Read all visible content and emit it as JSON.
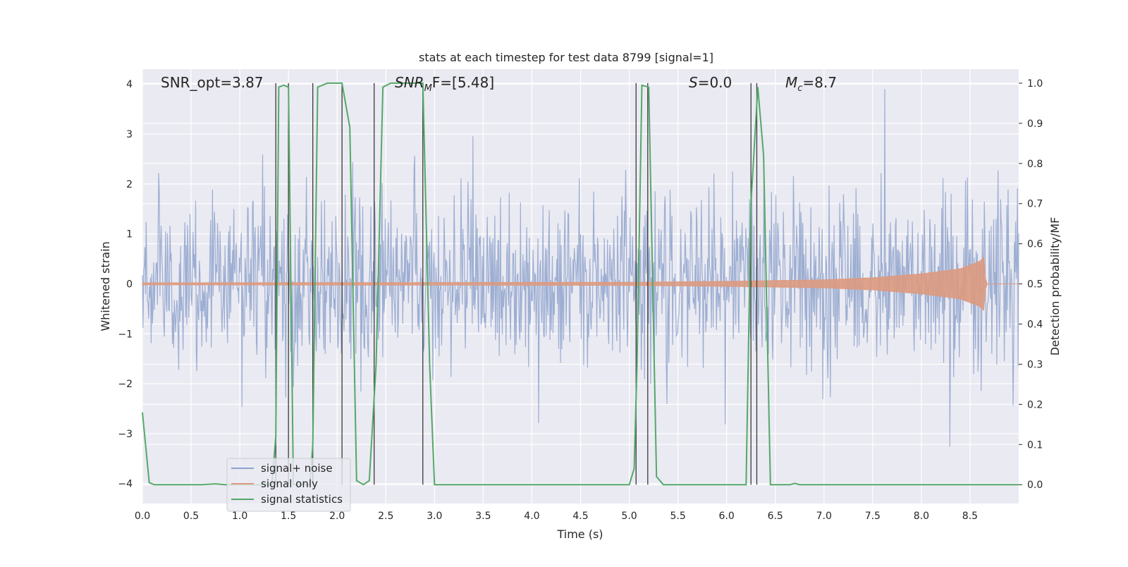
{
  "chart_data": {
    "type": "line",
    "title": "stats at each timestep for test data 8799 [signal=1]",
    "xlabel": "Time (s)",
    "ylabel": "Whitened strain",
    "y2label": "Detection probability/MF",
    "xlim": [
      0.0,
      9.0
    ],
    "ylim": [
      -4.4,
      4.3
    ],
    "y2lim": [
      -0.047,
      1.035
    ],
    "xticks": [
      "0.0",
      "0.5",
      "1.0",
      "1.5",
      "2.0",
      "2.5",
      "3.0",
      "3.5",
      "4.0",
      "4.5",
      "5.0",
      "5.5",
      "6.0",
      "6.5",
      "7.0",
      "7.5",
      "8.0",
      "8.5"
    ],
    "yticks": [
      "−4",
      "−3",
      "−2",
      "−1",
      "0",
      "1",
      "2",
      "3",
      "4"
    ],
    "y2ticks": [
      "0.0",
      "0.1",
      "0.2",
      "0.3",
      "0.4",
      "0.5",
      "0.6",
      "0.7",
      "0.8",
      "0.9",
      "1.0"
    ],
    "grid": true,
    "legend_position": "lower-left",
    "annotations": {
      "snr_opt": "SNR_opt=3.87",
      "snr_mf_name": "SNR",
      "snr_mf_sub": "M",
      "snr_mf_tail": "F=[5.48]",
      "s_name": "S",
      "s_tail": "=0.0",
      "mc_name": "M",
      "mc_sub": "c",
      "mc_tail": "=8.7"
    },
    "series": [
      {
        "name": "signal+ noise",
        "color": "#8fa3cc",
        "kind": "noise",
        "typical_range": [
          -1.7,
          1.7
        ],
        "peak_range": [
          -4.0,
          3.9
        ]
      },
      {
        "name": "signal only",
        "color": "#dd9a7f",
        "kind": "chirp",
        "amplitude_points": [
          [
            0.0,
            0.02
          ],
          [
            5.0,
            0.03
          ],
          [
            6.0,
            0.05
          ],
          [
            7.0,
            0.08
          ],
          [
            7.5,
            0.12
          ],
          [
            8.0,
            0.2
          ],
          [
            8.4,
            0.3
          ],
          [
            8.6,
            0.45
          ],
          [
            8.65,
            0.55
          ],
          [
            8.66,
            0.0
          ],
          [
            9.0,
            0.0
          ]
        ]
      },
      {
        "name": "signal statistics",
        "color": "#55a868",
        "axis": "right",
        "points": [
          [
            0.0,
            0.18
          ],
          [
            0.07,
            0.005
          ],
          [
            0.12,
            0.0
          ],
          [
            0.6,
            0.0
          ],
          [
            0.75,
            0.002
          ],
          [
            0.85,
            0.0
          ],
          [
            1.33,
            0.0
          ],
          [
            1.37,
            0.12
          ],
          [
            1.4,
            0.99
          ],
          [
            1.45,
            0.995
          ],
          [
            1.5,
            0.99
          ],
          [
            1.55,
            0.0
          ],
          [
            1.72,
            0.0
          ],
          [
            1.75,
            0.1
          ],
          [
            1.8,
            0.99
          ],
          [
            1.9,
            1.0
          ],
          [
            2.05,
            1.0
          ],
          [
            2.13,
            0.89
          ],
          [
            2.2,
            0.01
          ],
          [
            2.27,
            0.0
          ],
          [
            2.33,
            0.01
          ],
          [
            2.4,
            0.3
          ],
          [
            2.47,
            0.99
          ],
          [
            2.55,
            1.0
          ],
          [
            2.88,
            1.0
          ],
          [
            2.95,
            0.3
          ],
          [
            3.0,
            0.0
          ],
          [
            5.0,
            0.0
          ],
          [
            5.05,
            0.04
          ],
          [
            5.08,
            0.3
          ],
          [
            5.13,
            0.995
          ],
          [
            5.2,
            0.99
          ],
          [
            5.28,
            0.02
          ],
          [
            5.35,
            0.0
          ],
          [
            6.2,
            0.0
          ],
          [
            6.25,
            0.7
          ],
          [
            6.32,
            0.99
          ],
          [
            6.38,
            0.82
          ],
          [
            6.45,
            0.0
          ],
          [
            6.65,
            0.0
          ],
          [
            6.7,
            0.003
          ],
          [
            6.75,
            0.0
          ],
          [
            9.0,
            0.0
          ]
        ]
      }
    ],
    "vertical_markers": [
      1.37,
      1.5,
      1.75,
      2.05,
      2.38,
      2.88,
      5.07,
      5.19,
      6.25,
      6.31
    ]
  }
}
